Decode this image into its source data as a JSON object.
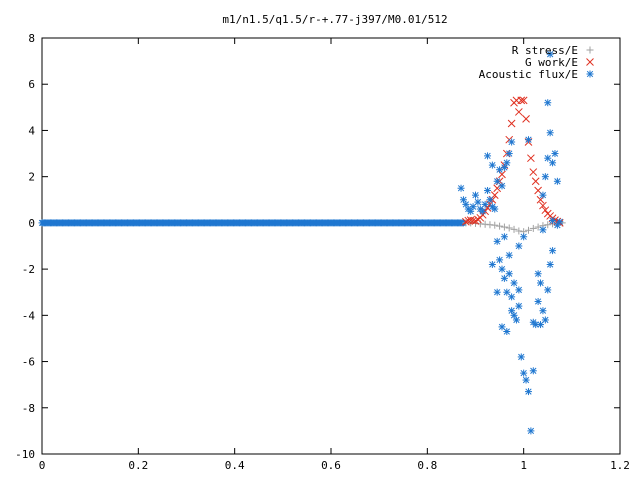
{
  "chart_data": {
    "type": "scatter",
    "title": "m1/n1.5/q1.5/r-+.77-j397/M0.01/512",
    "xlabel": "",
    "ylabel": "",
    "xlim": [
      0,
      1.2
    ],
    "ylim": [
      -10,
      8
    ],
    "x_ticks": [
      "0",
      "0.2",
      "0.4",
      "0.6",
      "0.8",
      "1",
      "1.2"
    ],
    "y_ticks": [
      "-10",
      "-8",
      "-6",
      "-4",
      "-2",
      "0",
      "2",
      "4",
      "6",
      "8"
    ],
    "grid": false,
    "legend_position": "top-right",
    "series": [
      {
        "name": "R stress/E",
        "marker": "plus",
        "color": "#a0a0a0",
        "points": [
          [
            0.88,
            0.0
          ],
          [
            0.89,
            0.0
          ],
          [
            0.9,
            -0.02
          ],
          [
            0.91,
            -0.04
          ],
          [
            0.92,
            -0.06
          ],
          [
            0.93,
            -0.08
          ],
          [
            0.94,
            -0.1
          ],
          [
            0.95,
            -0.14
          ],
          [
            0.96,
            -0.18
          ],
          [
            0.97,
            -0.22
          ],
          [
            0.98,
            -0.28
          ],
          [
            0.99,
            -0.35
          ],
          [
            1.0,
            -0.38
          ],
          [
            1.01,
            -0.32
          ],
          [
            1.02,
            -0.24
          ],
          [
            1.03,
            -0.18
          ],
          [
            1.04,
            -0.12
          ],
          [
            1.05,
            -0.08
          ],
          [
            1.06,
            -0.04
          ],
          [
            1.07,
            -0.02
          ],
          [
            1.08,
            0.0
          ]
        ]
      },
      {
        "name": "G work/E",
        "marker": "cross",
        "color": "#e03020",
        "points": [
          [
            0.88,
            0.05
          ],
          [
            0.885,
            0.1
          ],
          [
            0.89,
            0.12
          ],
          [
            0.895,
            0.1
          ],
          [
            0.9,
            0.08
          ],
          [
            0.905,
            0.15
          ],
          [
            0.91,
            0.22
          ],
          [
            0.915,
            0.35
          ],
          [
            0.92,
            0.5
          ],
          [
            0.925,
            0.65
          ],
          [
            0.93,
            0.8
          ],
          [
            0.935,
            1.0
          ],
          [
            0.94,
            1.2
          ],
          [
            0.945,
            1.5
          ],
          [
            0.95,
            1.8
          ],
          [
            0.955,
            2.1
          ],
          [
            0.96,
            2.5
          ],
          [
            0.965,
            3.0
          ],
          [
            0.97,
            3.6
          ],
          [
            0.975,
            4.3
          ],
          [
            0.98,
            5.2
          ],
          [
            0.985,
            5.3
          ],
          [
            0.99,
            4.8
          ],
          [
            0.995,
            5.3
          ],
          [
            1.0,
            5.3
          ],
          [
            1.005,
            4.5
          ],
          [
            1.01,
            3.5
          ],
          [
            1.015,
            2.8
          ],
          [
            1.02,
            2.2
          ],
          [
            1.025,
            1.8
          ],
          [
            1.03,
            1.4
          ],
          [
            1.035,
            1.0
          ],
          [
            1.04,
            0.75
          ],
          [
            1.045,
            0.55
          ],
          [
            1.05,
            0.4
          ],
          [
            1.055,
            0.3
          ],
          [
            1.06,
            0.2
          ],
          [
            1.065,
            0.12
          ],
          [
            1.07,
            0.06
          ],
          [
            1.075,
            0.0
          ]
        ]
      },
      {
        "name": "Acoustic flux/E",
        "marker": "star",
        "color": "#1f77d0",
        "points": [
          [
            0.87,
            1.5
          ],
          [
            0.875,
            1.0
          ],
          [
            0.88,
            0.8
          ],
          [
            0.885,
            0.6
          ],
          [
            0.89,
            0.5
          ],
          [
            0.895,
            0.7
          ],
          [
            0.9,
            1.2
          ],
          [
            0.905,
            0.9
          ],
          [
            0.91,
            0.6
          ],
          [
            0.915,
            0.5
          ],
          [
            0.92,
            0.8
          ],
          [
            0.925,
            1.4
          ],
          [
            0.93,
            1.0
          ],
          [
            0.935,
            0.7
          ],
          [
            0.94,
            0.6
          ],
          [
            0.945,
            1.8
          ],
          [
            0.95,
            2.3
          ],
          [
            0.955,
            1.6
          ],
          [
            0.96,
            2.4
          ],
          [
            0.965,
            2.6
          ],
          [
            0.97,
            3.0
          ],
          [
            0.975,
            3.5
          ],
          [
            0.925,
            2.9
          ],
          [
            0.935,
            2.5
          ],
          [
            0.935,
            -1.8
          ],
          [
            0.945,
            -0.8
          ],
          [
            0.95,
            -1.6
          ],
          [
            0.955,
            -2.0
          ],
          [
            0.96,
            -2.4
          ],
          [
            0.965,
            -3.0
          ],
          [
            0.97,
            -2.2
          ],
          [
            0.975,
            -3.2
          ],
          [
            0.98,
            -4.0
          ],
          [
            0.985,
            -4.2
          ],
          [
            0.99,
            -3.6
          ],
          [
            0.995,
            -5.8
          ],
          [
            1.0,
            -6.5
          ],
          [
            1.005,
            -6.8
          ],
          [
            1.01,
            -7.3
          ],
          [
            1.015,
            -9.0
          ],
          [
            1.02,
            -6.4
          ],
          [
            1.025,
            -4.4
          ],
          [
            1.03,
            -3.4
          ],
          [
            1.035,
            -2.6
          ],
          [
            1.04,
            -3.8
          ],
          [
            1.045,
            -4.2
          ],
          [
            1.05,
            -2.9
          ],
          [
            1.055,
            -1.8
          ],
          [
            1.06,
            -1.2
          ],
          [
            1.04,
            1.2
          ],
          [
            1.045,
            2.0
          ],
          [
            1.05,
            2.8
          ],
          [
            1.055,
            3.9
          ],
          [
            1.06,
            2.6
          ],
          [
            1.065,
            3.0
          ],
          [
            1.07,
            1.8
          ],
          [
            1.05,
            5.2
          ],
          [
            1.055,
            7.3
          ],
          [
            1.0,
            -0.6
          ],
          [
            1.01,
            3.6
          ],
          [
            0.99,
            -1.0
          ],
          [
            0.96,
            -0.6
          ],
          [
            0.97,
            -1.4
          ],
          [
            0.98,
            -2.6
          ],
          [
            0.99,
            -2.9
          ],
          [
            1.02,
            -4.3
          ],
          [
            1.03,
            -2.2
          ],
          [
            1.035,
            -4.4
          ],
          [
            0.945,
            -3.0
          ],
          [
            0.955,
            -4.5
          ],
          [
            0.965,
            -4.7
          ],
          [
            0.975,
            -3.8
          ],
          [
            1.04,
            -0.3
          ],
          [
            1.06,
            0.1
          ],
          [
            1.07,
            -0.1
          ],
          [
            1.075,
            0.05
          ]
        ]
      }
    ]
  }
}
